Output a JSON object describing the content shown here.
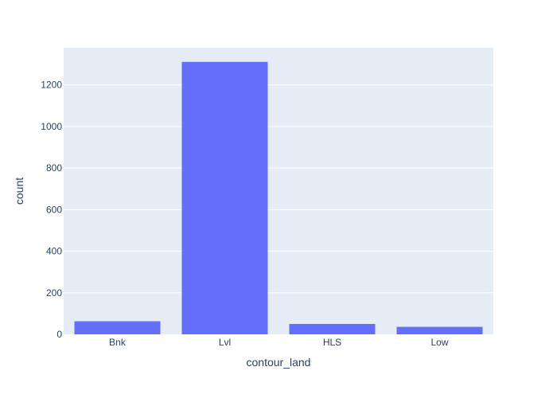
{
  "chart_data": {
    "type": "bar",
    "categories": [
      "Bnk",
      "Lvl",
      "HLS",
      "Low"
    ],
    "values": [
      63,
      1311,
      50,
      36
    ],
    "xlabel": "contour_land",
    "ylabel": "count",
    "ylim": [
      0,
      1379
    ],
    "yticks": [
      0,
      200,
      400,
      600,
      800,
      1000,
      1200
    ],
    "ytick_labels": [
      "0",
      "200",
      "400",
      "600",
      "800",
      "1000",
      "1200"
    ],
    "grid": true,
    "legend": "none",
    "colors": {
      "bar": "#636efa",
      "plot_bg": "#e5ecf6",
      "grid": "#ffffff",
      "tick_text": "#2a3f5f",
      "page_bg": "#ffffff"
    }
  }
}
